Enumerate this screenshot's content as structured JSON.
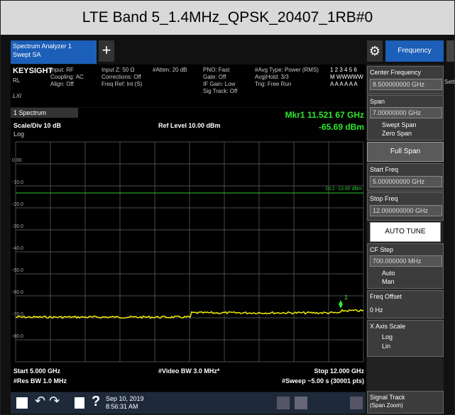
{
  "header": {
    "title": "LTE Band 5_1.4MHz_QPSK_20407_1RB#0"
  },
  "toolbar": {
    "tab_line1": "Spectrum Analyzer 1",
    "tab_line2": "Swept SA",
    "plus": "+",
    "menu": "Frequency"
  },
  "info": {
    "brand": "KEYSIGHT",
    "rl": "RL",
    "lxi": "LXI",
    "col1": [
      "Input: RF",
      "Coupling: AC",
      "Align: Off"
    ],
    "col2": [
      "Input Z: 50 Ω",
      "Corrections: Off",
      "Freq Ref: Int (S)"
    ],
    "col3": [
      "#Atten: 20 dB"
    ],
    "col4": [
      "PNO: Fast",
      "Gate: Off",
      "IF Gain: Low",
      "Sig Track: Off"
    ],
    "col5": [
      "#Avg Type: Power (RMS)",
      "Avg|Hold: 3/3",
      "Trig: Free Run"
    ],
    "traces": [
      "1 2 3 4 5 6",
      "M WWWWW",
      "A A A A A A"
    ]
  },
  "graph": {
    "window": "1 Spectrum",
    "scale": "Scale/Div 10 dB",
    "ref": "Ref Level 10.00 dBm",
    "log": "Log",
    "marker_freq": "Mkr1  11.521 67 GHz",
    "marker_level": "-65.69 dBm",
    "marker_id": "1",
    "display_line": "DL1 -13.00 dBm",
    "y_labels": [
      "0.00",
      "-10.0",
      "-20.0",
      "-30.0",
      "-40.0",
      "-50.0",
      "-60.0",
      "-70.0",
      "-80.0"
    ],
    "start": "Start 5.000 GHz",
    "vbw": "#Video BW 3.0 MHz*",
    "stop": "Stop 12.000 GHz",
    "rbw": "#Res BW 1.0 MHz",
    "sweep": "#Sweep ~5.00 s (30001 pts)"
  },
  "panel": {
    "setting": "Settings",
    "center_label": "Center Frequency",
    "center_value": "8.500000000 GHz",
    "span_label": "Span",
    "span_value": "7.00000000 GHz",
    "swept": "Swept Span",
    "zero": "Zero Span",
    "full_span": "Full Span",
    "start_label": "Start Freq",
    "start_value": "5.000000000 GHz",
    "stop_label": "Stop Freq",
    "stop_value": "12.000000000 GHz",
    "auto_tune": "AUTO TUNE",
    "cf_label": "CF Step",
    "cf_value": "700.000000 MHz",
    "auto": "Auto",
    "man": "Man",
    "offset_label": "Freq Offset",
    "offset_value": "0 Hz",
    "xscale_label": "X Axis Scale",
    "log": "Log",
    "lin": "Lin",
    "track_label": "Signal Track",
    "track_sub": "(Span Zoom)"
  },
  "taskbar": {
    "date": "Sep 10, 2019",
    "time": "8:56:31 AM"
  }
}
